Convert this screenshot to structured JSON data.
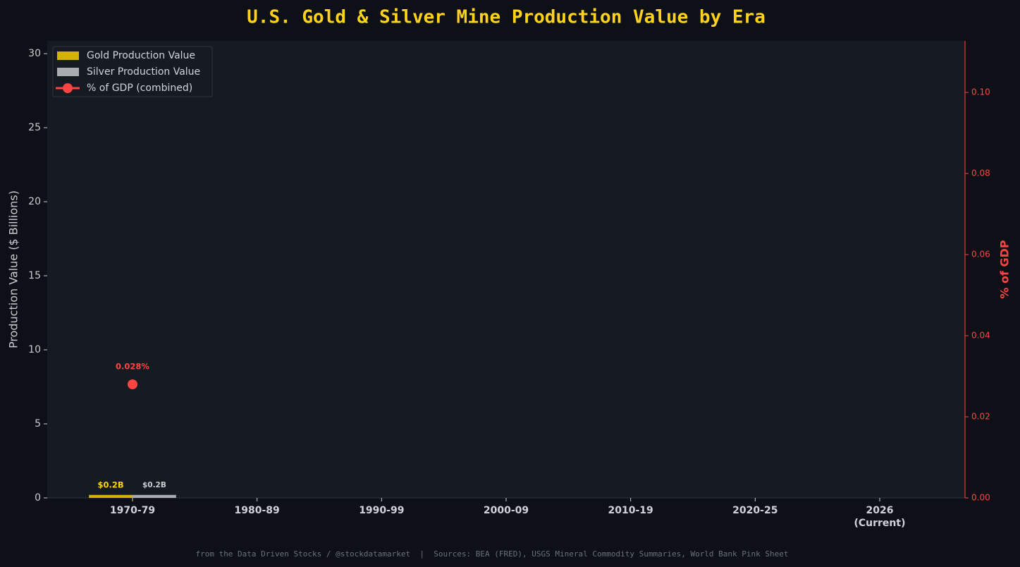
{
  "chart_data": {
    "type": "bar",
    "title": "U.S. Gold & Silver Mine Production Value by Era",
    "y_label": "Production Value ($ Billions)",
    "y2_label": "% of GDP",
    "footer": "from the Data Driven Stocks / @stockdatamarket  |  Sources: BEA (FRED), USGS Mineral Commodity Summaries, World Bank Pink Sheet",
    "categories": [
      "1970-79",
      "1980-89",
      "1990-99",
      "2000-09",
      "2010-19",
      "2020-25",
      "2026\n(Current)"
    ],
    "series": [
      {
        "name": "Gold Production Value",
        "type": "bar",
        "color": "#d4b10c",
        "label_color": "#ffd21a",
        "values": [
          0.2,
          null,
          null,
          null,
          null,
          null,
          null
        ],
        "value_labels": [
          "$0.2B",
          null,
          null,
          null,
          null,
          null,
          null
        ]
      },
      {
        "name": "Silver Production Value",
        "type": "bar",
        "color": "#a9acb1",
        "label_color": "#c9ccd1",
        "values": [
          0.2,
          null,
          null,
          null,
          null,
          null,
          null
        ],
        "value_labels": [
          "$0.2B",
          null,
          null,
          null,
          null,
          null,
          null
        ]
      },
      {
        "name": "% of GDP (combined)",
        "type": "line",
        "axis": "y2",
        "color": "#ff4444",
        "label_color": "#ff4444",
        "values": [
          0.028,
          null,
          null,
          null,
          null,
          null,
          null
        ],
        "value_labels": [
          "0.028%",
          null,
          null,
          null,
          null,
          null,
          null
        ]
      }
    ],
    "ylim": [
      0,
      30.86
    ],
    "yticks": [
      0,
      5,
      10,
      15,
      20,
      25,
      30
    ],
    "y2lim": [
      0,
      0.1127
    ],
    "y2ticks": [
      {
        "value": 0,
        "label": "0.00"
      },
      0.02,
      0.04,
      0.06,
      0.08,
      {
        "value": 0.1,
        "label": "0.10"
      }
    ],
    "legend": "upper left",
    "grid": false
  }
}
